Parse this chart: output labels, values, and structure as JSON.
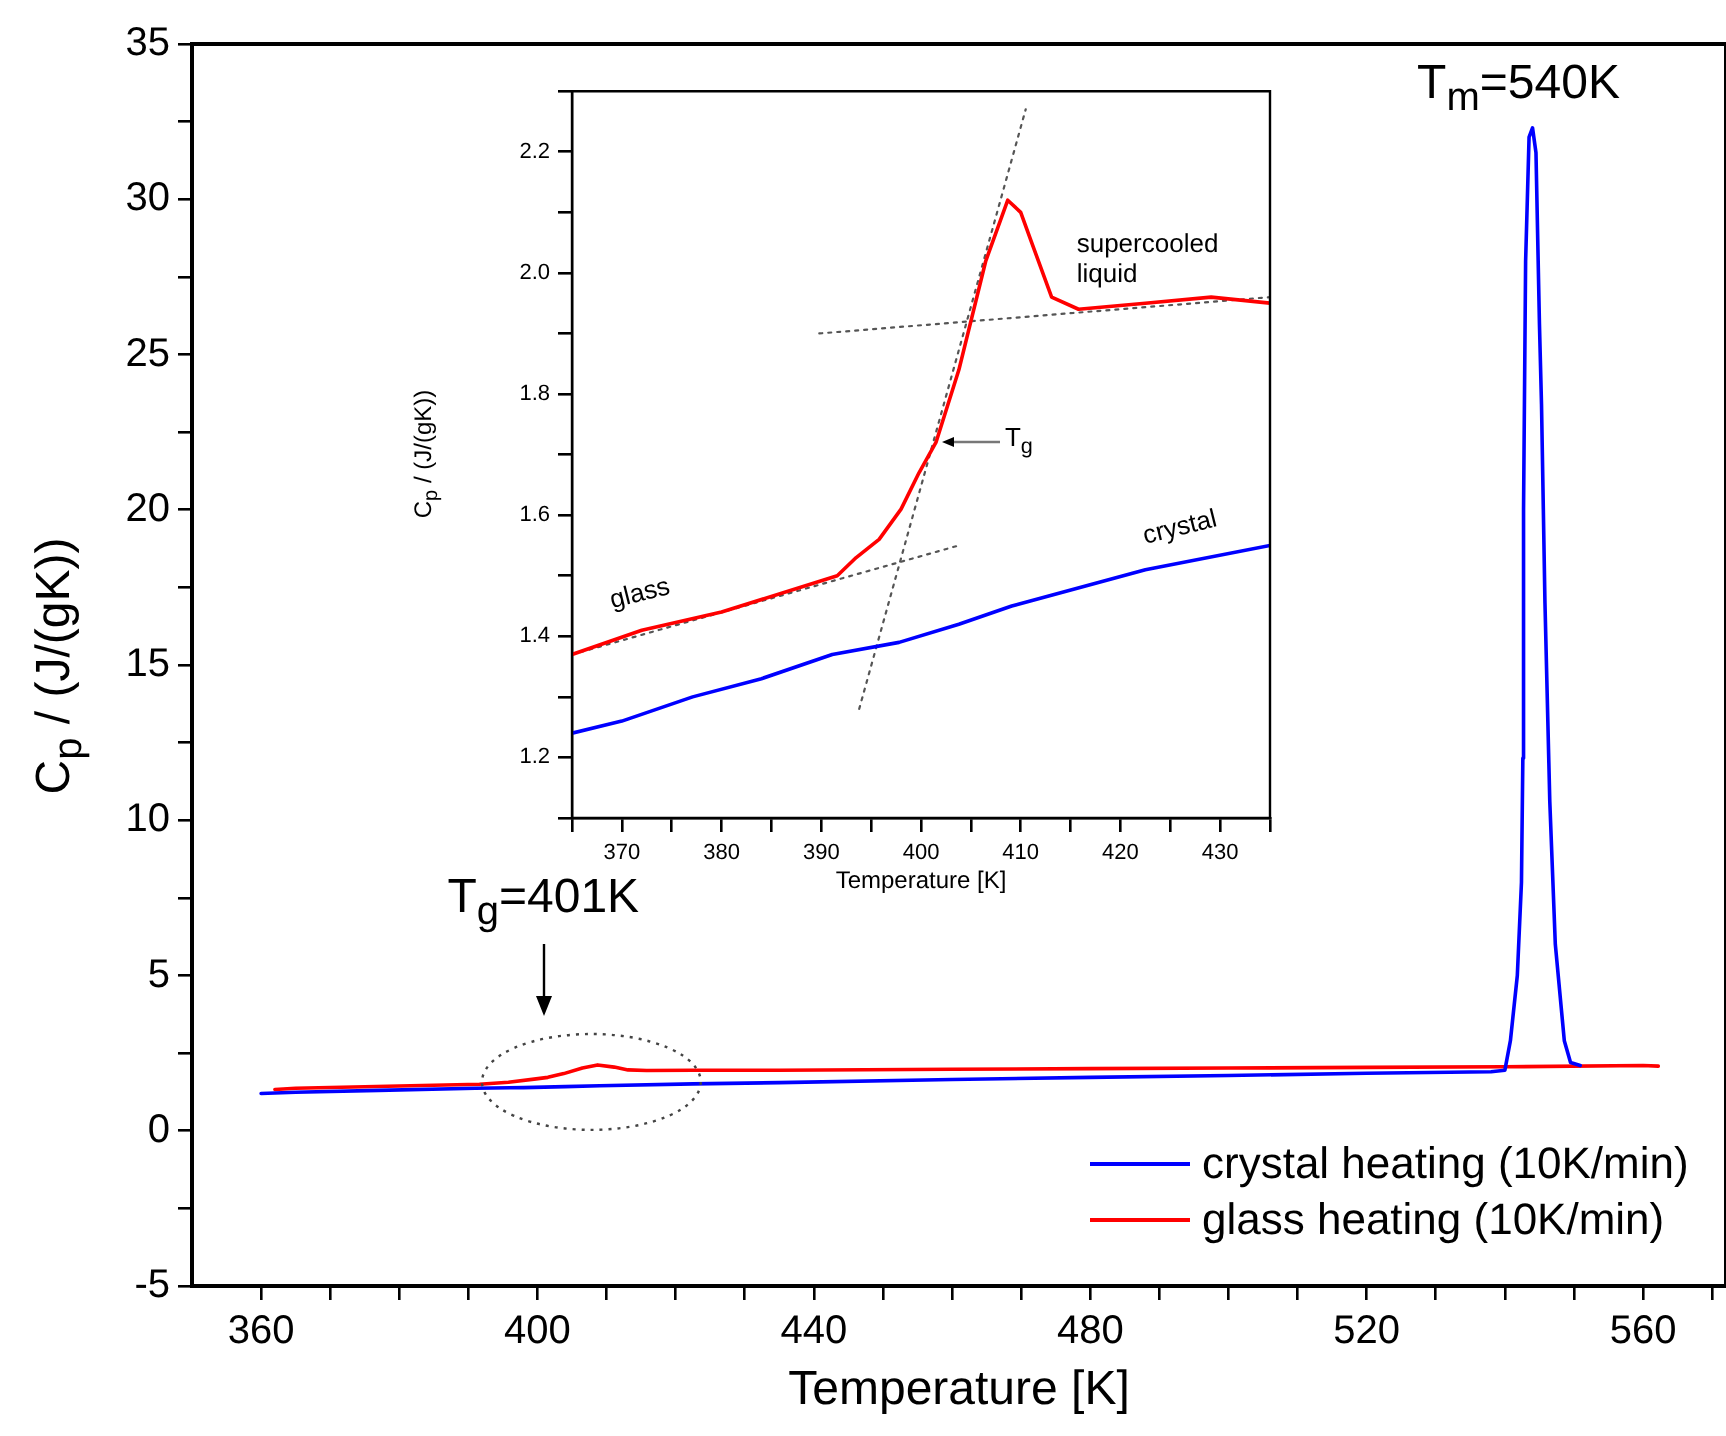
{
  "chart_data": [
    {
      "type": "line",
      "xlabel": "Temperature [K]",
      "ylabel": "C$_{p}$ / (J/(gK))",
      "legend": "bottom right",
      "xlim": [
        350,
        572
      ],
      "xticks": [
        360,
        {
          "value": 370,
          "label": null
        },
        {
          "value": 380,
          "label": null
        },
        {
          "value": 390,
          "label": null
        },
        400,
        {
          "value": 410,
          "label": null
        },
        {
          "value": 420,
          "label": null
        },
        {
          "value": 430,
          "label": null
        },
        440,
        {
          "value": 450,
          "label": null
        },
        {
          "value": 460,
          "label": null
        },
        {
          "value": 470,
          "label": null
        },
        480,
        {
          "value": 490,
          "label": null
        },
        {
          "value": 500,
          "label": null
        },
        {
          "value": 510,
          "label": null
        },
        520,
        {
          "value": 530,
          "label": null
        },
        {
          "value": 540,
          "label": null
        },
        {
          "value": 550,
          "label": null
        },
        560,
        {
          "value": 570,
          "label": null
        }
      ],
      "ylim": [
        -5,
        35
      ],
      "yticks": [
        -5,
        {
          "value": -2.5,
          "label": null
        },
        0,
        {
          "value": 2.5,
          "label": null
        },
        5,
        {
          "value": 7.5,
          "label": null
        },
        10,
        {
          "value": 12.5,
          "label": null
        },
        15,
        {
          "value": 17.5,
          "label": null
        },
        20,
        {
          "value": 22.5,
          "label": null
        },
        25,
        {
          "value": 27.5,
          "label": null
        },
        30,
        {
          "value": 32.5,
          "label": null
        },
        35
      ],
      "series": [
        {
          "name": "crystal heating (10K/min)",
          "color": "#0000ff",
          "x": [
            360,
            365,
            377,
            391,
            398,
            404,
            409,
            422.5,
            435,
            460,
            480,
            500,
            520,
            538,
            540,
            540.8,
            541.8,
            542.4,
            542.6,
            542.7,
            543,
            543.5,
            544,
            544.5,
            545,
            545.3,
            545.8,
            546.5,
            547.3,
            548.6,
            549.5,
            550.9
          ],
          "values": [
            1.2,
            1.24,
            1.3,
            1.37,
            1.39,
            1.42,
            1.45,
            1.51,
            1.55,
            1.65,
            1.72,
            1.78,
            1.85,
            1.9,
            1.95,
            2.9,
            5,
            8,
            12,
            20,
            28,
            32,
            32.3,
            31.5,
            26,
            23.4,
            17,
            10.6,
            6,
            2.9,
            2.2,
            2.1
          ]
        },
        {
          "name": "glass heating (10K/min)",
          "color": "#ff0000",
          "x": [
            362,
            365,
            391.6,
            395.8,
            399.8,
            401.5,
            403.8,
            406.5,
            408.7,
            411.1,
            413.1,
            415.8,
            422.5,
            435,
            460,
            480,
            500,
            520,
            540,
            560,
            562.2
          ],
          "values": [
            1.33,
            1.37,
            1.5,
            1.56,
            1.67,
            1.72,
            1.84,
            2.02,
            2.12,
            2.05,
            1.96,
            1.94,
            1.95,
            1.95,
            1.98,
            2.0,
            2.02,
            2.04,
            2.06,
            2.1,
            2.08
          ]
        }
      ],
      "annotations": [
        {
          "text": "T$_{m}$=540K",
          "x": 544,
          "y": 32.3
        },
        "T$_{g}$=401K"
      ]
    },
    {
      "type": "line",
      "xlabel": "Temperature [K]",
      "ylabel": "C$_{p}$ / (J/(gK))",
      "xlim": [
        365,
        435
      ],
      "xticks": [
        {
          "value": 365,
          "label": null
        },
        370,
        {
          "value": 375,
          "label": null
        },
        380,
        {
          "value": 385,
          "label": null
        },
        390,
        {
          "value": 395,
          "label": null
        },
        400,
        {
          "value": 405,
          "label": null
        },
        410,
        {
          "value": 415,
          "label": null
        },
        420,
        {
          "value": 425,
          "label": null
        },
        430,
        {
          "value": 435,
          "label": null
        }
      ],
      "ylim": [
        1.1,
        2.3
      ],
      "yticks": [
        {
          "value": 1.1,
          "label": null
        },
        1.2,
        {
          "value": 1.3,
          "label": null
        },
        1.4,
        {
          "value": 1.5,
          "label": null
        },
        1.6,
        {
          "value": 1.7,
          "label": null
        },
        1.8,
        {
          "value": 1.9,
          "label": null
        },
        {
          "value": 2,
          "label": "2.0"
        },
        {
          "value": 2.1,
          "label": null
        },
        2.2,
        {
          "value": 2.3,
          "label": null
        }
      ],
      "series": [
        {
          "color": "#0000ff",
          "x": [
            365,
            370,
            377.1,
            384,
            391.1,
            397.8,
            403.8,
            409.1,
            422.5,
            435
          ],
          "values": [
            1.24,
            1.26,
            1.3,
            1.33,
            1.37,
            1.39,
            1.42,
            1.45,
            1.51,
            1.55
          ]
        },
        {
          "color": "#ff0000",
          "x": [
            365,
            372,
            380,
            391.6,
            393.5,
            395.8,
            398,
            399.8,
            401.5,
            403.8,
            406.5,
            408.7,
            410,
            411.1,
            413.1,
            415.8,
            422.5,
            429.1,
            435
          ],
          "values": [
            1.37,
            1.41,
            1.44,
            1.5,
            1.53,
            1.56,
            1.61,
            1.67,
            1.72,
            1.84,
            2.02,
            2.12,
            2.1,
            2.05,
            1.96,
            1.94,
            1.95,
            1.96,
            1.95
          ]
        },
        {
          "type": "line",
          "color": "#555555",
          "line_style": "dotted",
          "x": [
            365,
            403.8
          ],
          "values": [
            1.37,
            1.55
          ]
        },
        {
          "type": "line",
          "color": "#555555",
          "line_style": "dotted",
          "x": [
            389.8,
            435
          ],
          "values": [
            1.9,
            1.96
          ]
        },
        {
          "type": "line",
          "color": "#555555",
          "line_style": "dotted",
          "x": [
            393.8,
            410.5
          ],
          "values": [
            1.28,
            2.27
          ]
        }
      ],
      "annotations": [
        "supercooled liquid",
        "glass",
        "crystal",
        {
          "text": "T$_{g}$",
          "x": 401.8,
          "y": 1.72
        }
      ]
    }
  ]
}
